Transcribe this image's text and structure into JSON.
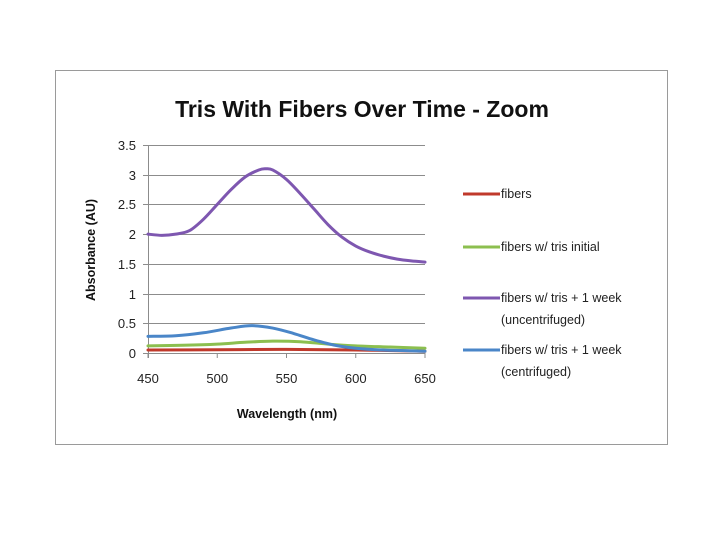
{
  "chart_data": {
    "type": "line",
    "title": "Tris With Fibers Over Time - Zoom",
    "xlabel": "Wavelength (nm)",
    "ylabel": "Absorbance (AU)",
    "xlim": [
      450,
      650
    ],
    "ylim": [
      0,
      3.5
    ],
    "xticks": [
      "450",
      "500",
      "550",
      "600",
      "650"
    ],
    "yticks": [
      "0",
      "0.5",
      "1",
      "1.5",
      "2",
      "2.5",
      "3",
      "3.5"
    ],
    "grid": "horizontal",
    "legend_position": "right",
    "series": [
      {
        "name": "fibers",
        "legend_lines": [
          "fibers"
        ],
        "color": "#c0392b",
        "x": [
          450,
          500,
          550,
          600,
          650
        ],
        "y": [
          0.05,
          0.055,
          0.06,
          0.05,
          0.03
        ]
      },
      {
        "name": "fibers w/ tris initial",
        "legend_lines": [
          "fibers w/ tris initial"
        ],
        "color": "#8cbf4f",
        "x": [
          450,
          475,
          500,
          520,
          540,
          560,
          580,
          600,
          625,
          650
        ],
        "y": [
          0.12,
          0.13,
          0.15,
          0.18,
          0.2,
          0.19,
          0.15,
          0.12,
          0.1,
          0.08
        ]
      },
      {
        "name": "fibers w/ tris + 1 week (uncentrifuged)",
        "legend_lines": [
          "fibers w/ tris + 1 week",
          "(uncentrifuged)"
        ],
        "color": "#7e57b0",
        "x": [
          450,
          460,
          470,
          480,
          490,
          500,
          510,
          520,
          530,
          535,
          540,
          550,
          560,
          570,
          580,
          590,
          600,
          610,
          620,
          630,
          640,
          650
        ],
        "y": [
          2.0,
          1.98,
          2.0,
          2.06,
          2.25,
          2.5,
          2.75,
          2.96,
          3.08,
          3.1,
          3.08,
          2.92,
          2.68,
          2.42,
          2.16,
          1.95,
          1.8,
          1.7,
          1.63,
          1.58,
          1.55,
          1.53
        ]
      },
      {
        "name": "fibers w/ tris + 1 week (centrifuged)",
        "legend_lines": [
          "fibers w/ tris + 1 week",
          "(centrifuged)"
        ],
        "color": "#4a86c8",
        "x": [
          450,
          470,
          490,
          510,
          525,
          540,
          555,
          570,
          585,
          600,
          620,
          650
        ],
        "y": [
          0.28,
          0.29,
          0.34,
          0.42,
          0.46,
          0.42,
          0.33,
          0.22,
          0.13,
          0.08,
          0.05,
          0.03
        ]
      }
    ]
  }
}
